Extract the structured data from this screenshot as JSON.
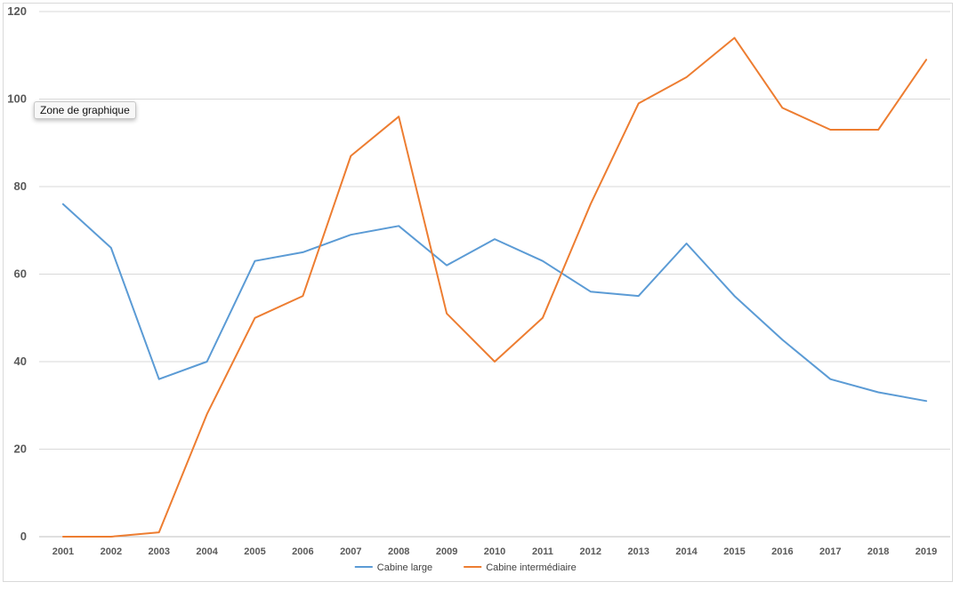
{
  "chart_data": {
    "type": "line",
    "title": "",
    "xlabel": "",
    "ylabel": "",
    "categories": [
      "2001",
      "2002",
      "2003",
      "2004",
      "2005",
      "2006",
      "2007",
      "2008",
      "2009",
      "2010",
      "2011",
      "2012",
      "2013",
      "2014",
      "2015",
      "2016",
      "2017",
      "2018",
      "2019"
    ],
    "ylim": [
      0,
      120
    ],
    "yticks": [
      0,
      20,
      40,
      60,
      80,
      100,
      120
    ],
    "grid": true,
    "legend_position": "bottom",
    "series": [
      {
        "name": "Cabine large",
        "color": "#5b9bd5",
        "values": [
          76,
          66,
          36,
          40,
          63,
          65,
          69,
          71,
          62,
          68,
          63,
          56,
          55,
          67,
          55,
          45,
          36,
          33,
          31
        ]
      },
      {
        "name": "Cabine intermédiaire",
        "color": "#ed7d31",
        "values": [
          0,
          0,
          1,
          28,
          50,
          55,
          87,
          96,
          51,
          40,
          50,
          76,
          99,
          105,
          114,
          98,
          93,
          93,
          109
        ]
      }
    ]
  },
  "tooltip": {
    "text": "Zone de graphique"
  }
}
